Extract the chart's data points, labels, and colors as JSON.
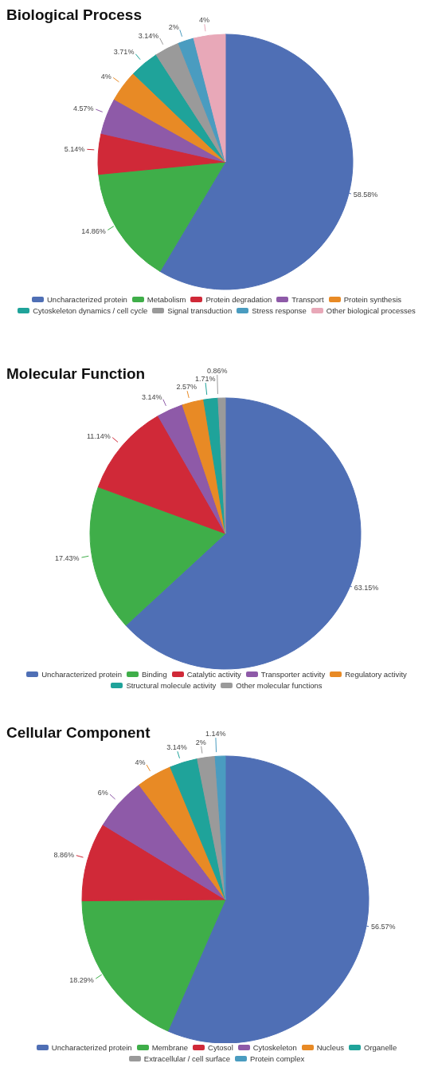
{
  "chart_data": [
    {
      "type": "pie",
      "title": "Biological Process",
      "categories": [
        "Uncharacterized protein",
        "Metabolism",
        "Protein degradation",
        "Transport",
        "Protein synthesis",
        "Cytoskeleton dynamics / cell cycle",
        "Signal transduction",
        "Stress response",
        "Other biological processes"
      ],
      "values": [
        58.58,
        14.86,
        5.14,
        4.57,
        4,
        3.71,
        3.14,
        2,
        4
      ],
      "value_labels": [
        "58.58%",
        "14.86%",
        "5.14%",
        "4.57%",
        "4%",
        "3.71%",
        "3.14%",
        "2%",
        "4%"
      ],
      "colors": [
        "#4f6fb5",
        "#3fae49",
        "#d02938",
        "#8e5aa8",
        "#e88a25",
        "#1fa39a",
        "#9a9a9a",
        "#4a9cc0",
        "#e8a8b8"
      ],
      "legend": "bottom"
    },
    {
      "type": "pie",
      "title": "Molecular Function",
      "categories": [
        "Uncharacterized protein",
        "Binding",
        "Catalytic activity",
        "Transporter activity",
        "Regulatory activity",
        "Structural molecule activity",
        "Other molecular functions"
      ],
      "values": [
        63.15,
        17.43,
        11.14,
        3.14,
        2.57,
        1.71,
        0.86
      ],
      "value_labels": [
        "63.15%",
        "17.43%",
        "11.14%",
        "3.14%",
        "2.57%",
        "1.71%",
        "0.86%"
      ],
      "colors": [
        "#4f6fb5",
        "#3fae49",
        "#d02938",
        "#8e5aa8",
        "#e88a25",
        "#1fa39a",
        "#9a9a9a"
      ],
      "legend": "bottom"
    },
    {
      "type": "pie",
      "title": "Cellular Component",
      "categories": [
        "Uncharacterized protein",
        "Membrane",
        "Cytosol",
        "Cytoskeleton",
        "Nucleus",
        "Organelle",
        "Extracellular / cell surface",
        "Protein complex"
      ],
      "values": [
        56.57,
        18.29,
        8.86,
        6,
        4,
        3.14,
        2,
        1.14
      ],
      "value_labels": [
        "56.57%",
        "18.29%",
        "8.86%",
        "6%",
        "4%",
        "3.14%",
        "2%",
        "1.14%"
      ],
      "colors": [
        "#4f6fb5",
        "#3fae49",
        "#d02938",
        "#8e5aa8",
        "#e88a25",
        "#1fa39a",
        "#9a9a9a",
        "#4a9cc0"
      ],
      "legend": "bottom"
    }
  ]
}
